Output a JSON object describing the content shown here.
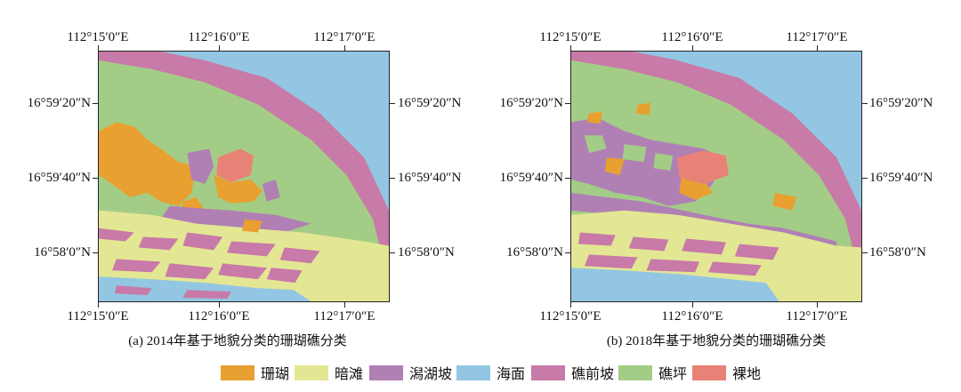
{
  "panel_a": {
    "caption": "(a) 2014年基于地貌分类的珊瑚礁分类",
    "top_ticks": [
      "112°15′0″E",
      "112°16′0″E",
      "112°17′0″E"
    ],
    "bottom_ticks": [
      "112°15′0″E",
      "112°16′0″E",
      "112°17′0″E"
    ],
    "left_ticks": [
      "16°59′20″N",
      "16°59′40″N",
      "16°58′0″N"
    ],
    "right_ticks": [
      "16°59′20″N",
      "16°59′40″N",
      "16°58′0″N"
    ]
  },
  "panel_b": {
    "caption": "(b) 2018年基于地貌分类的珊瑚礁分类",
    "top_ticks": [
      "112°15′0″E",
      "112°16′0″E",
      "112°17′0″E"
    ],
    "bottom_ticks": [
      "112°15′0″E",
      "112°16′0″E",
      "112°17′0″E"
    ],
    "left_ticks": [
      "16°59′20″N",
      "16°59′40″N",
      "16°58′0″N"
    ],
    "right_ticks": [
      "16°59′20″N",
      "16°59′40″N",
      "16°58′0″N"
    ]
  },
  "legend": [
    {
      "label": "珊瑚",
      "color": "#e8a030"
    },
    {
      "label": "暗滩",
      "color": "#e3e793"
    },
    {
      "label": "潟湖坡",
      "color": "#b080b5"
    },
    {
      "label": "海面",
      "color": "#93c6e3"
    },
    {
      "label": "礁前坡",
      "color": "#c87aa8"
    },
    {
      "label": "礁坪",
      "color": "#a3cd86"
    },
    {
      "label": "裸地",
      "color": "#e98276"
    }
  ]
}
